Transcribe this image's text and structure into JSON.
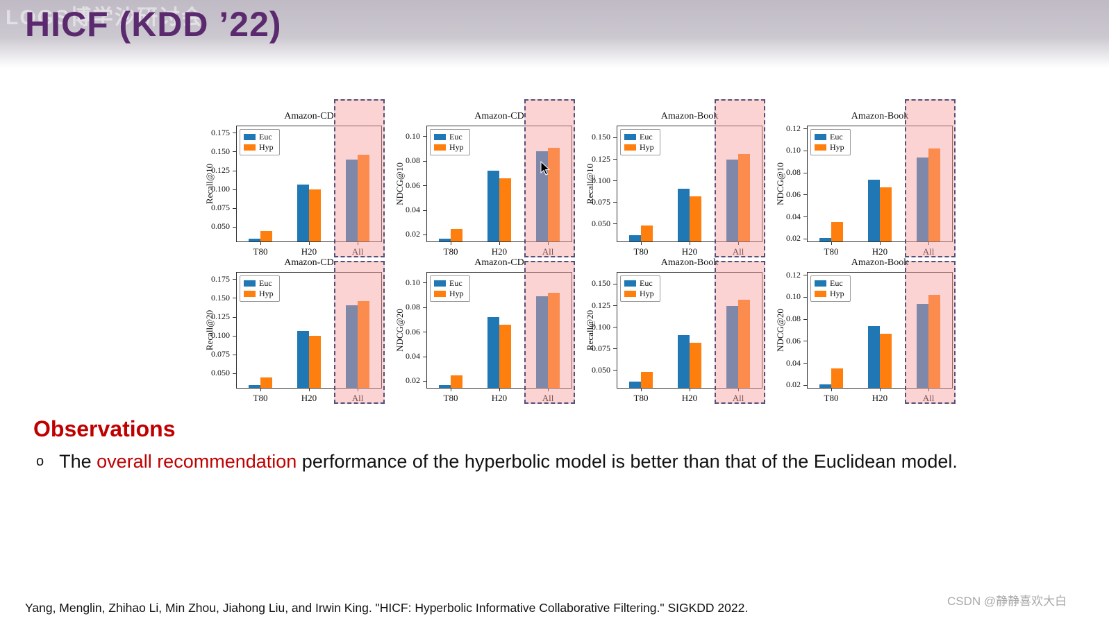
{
  "slide": {
    "title": "HICF (KDD ’22)",
    "watermark_top": "LOGS博学沙研讨会",
    "observations_heading": "Observations",
    "bullet": {
      "marker": "o",
      "prefix": "The ",
      "highlight": "overall recommendation",
      "suffix": " performance of the hyperbolic model is better than that of the Euclidean model."
    },
    "citation": "Yang, Menglin, Zhihao Li, Min Zhou, Jiahong Liu, and Irwin King. \"HICF: Hyperbolic Informative Collaborative Filtering.\"  SIGKDD 2022.",
    "watermark_bottom": "CSDN @静静喜欢大白"
  },
  "colors": {
    "title_purple": "#5b2a6e",
    "accent_red": "#c00000",
    "euc": "#1f77b4",
    "hyp": "#ff7f0e",
    "highlight_fill": "rgba(247,158,158,0.45)",
    "highlight_border": "#50507a"
  },
  "chart_data": [
    {
      "type": "bar",
      "title": "Amazon-CD",
      "ylabel": "Recall@10",
      "categories": [
        "T80",
        "H20",
        "All"
      ],
      "series": [
        {
          "name": "Euc",
          "values": [
            0.035,
            0.107,
            0.14
          ]
        },
        {
          "name": "Hyp",
          "values": [
            0.045,
            0.1,
            0.146
          ]
        }
      ],
      "ylim": [
        0.03,
        0.185
      ],
      "yticks": [
        0.05,
        0.075,
        0.1,
        0.125,
        0.15,
        0.175
      ],
      "ytick_labels": [
        "0.050",
        "0.075",
        "0.100",
        "0.125",
        "0.150",
        "0.175"
      ],
      "legend_position": "upper left",
      "highlight_category": "All"
    },
    {
      "type": "bar",
      "title": "Amazon-CD",
      "ylabel": "NDCG@10",
      "categories": [
        "T80",
        "H20",
        "All"
      ],
      "series": [
        {
          "name": "Euc",
          "values": [
            0.017,
            0.072,
            0.088
          ]
        },
        {
          "name": "Hyp",
          "values": [
            0.025,
            0.066,
            0.091
          ]
        }
      ],
      "ylim": [
        0.014,
        0.109
      ],
      "yticks": [
        0.02,
        0.04,
        0.06,
        0.08,
        0.1
      ],
      "ytick_labels": [
        "0.02",
        "0.04",
        "0.06",
        "0.08",
        "0.10"
      ],
      "legend_position": "upper left",
      "highlight_category": "All"
    },
    {
      "type": "bar",
      "title": "Amazon-Book",
      "ylabel": "Recall@10",
      "categories": [
        "T80",
        "H20",
        "All"
      ],
      "series": [
        {
          "name": "Euc",
          "values": [
            0.037,
            0.091,
            0.125
          ]
        },
        {
          "name": "Hyp",
          "values": [
            0.048,
            0.082,
            0.131
          ]
        }
      ],
      "ylim": [
        0.029,
        0.164
      ],
      "yticks": [
        0.05,
        0.075,
        0.1,
        0.125,
        0.15
      ],
      "ytick_labels": [
        "0.050",
        "0.075",
        "0.100",
        "0.125",
        "0.150"
      ],
      "legend_position": "upper left",
      "highlight_category": "All"
    },
    {
      "type": "bar",
      "title": "Amazon-Book",
      "ylabel": "NDCG@10",
      "categories": [
        "T80",
        "H20",
        "All"
      ],
      "series": [
        {
          "name": "Euc",
          "values": [
            0.021,
            0.074,
            0.094
          ]
        },
        {
          "name": "Hyp",
          "values": [
            0.035,
            0.067,
            0.102
          ]
        }
      ],
      "ylim": [
        0.017,
        0.123
      ],
      "yticks": [
        0.02,
        0.04,
        0.06,
        0.08,
        0.1,
        0.12
      ],
      "ytick_labels": [
        "0.02",
        "0.04",
        "0.06",
        "0.08",
        "0.10",
        "0.12"
      ],
      "legend_position": "upper left",
      "highlight_category": "All"
    },
    {
      "type": "bar",
      "title": "Amazon-CD",
      "ylabel": "Recall@20",
      "categories": [
        "T80",
        "H20",
        "All"
      ],
      "series": [
        {
          "name": "Euc",
          "values": [
            0.035,
            0.107,
            0.141
          ]
        },
        {
          "name": "Hyp",
          "values": [
            0.045,
            0.1,
            0.146
          ]
        }
      ],
      "ylim": [
        0.03,
        0.185
      ],
      "yticks": [
        0.05,
        0.075,
        0.1,
        0.125,
        0.15,
        0.175
      ],
      "ytick_labels": [
        "0.050",
        "0.075",
        "0.100",
        "0.125",
        "0.150",
        "0.175"
      ],
      "legend_position": "upper left",
      "highlight_category": "All"
    },
    {
      "type": "bar",
      "title": "Amazon-CD",
      "ylabel": "NDCG@20",
      "categories": [
        "T80",
        "H20",
        "All"
      ],
      "series": [
        {
          "name": "Euc",
          "values": [
            0.017,
            0.072,
            0.089
          ]
        },
        {
          "name": "Hyp",
          "values": [
            0.025,
            0.066,
            0.092
          ]
        }
      ],
      "ylim": [
        0.014,
        0.109
      ],
      "yticks": [
        0.02,
        0.04,
        0.06,
        0.08,
        0.1
      ],
      "ytick_labels": [
        "0.02",
        "0.04",
        "0.06",
        "0.08",
        "0.10"
      ],
      "legend_position": "upper left",
      "highlight_category": "All"
    },
    {
      "type": "bar",
      "title": "Amazon-Book",
      "ylabel": "Recall@20",
      "categories": [
        "T80",
        "H20",
        "All"
      ],
      "series": [
        {
          "name": "Euc",
          "values": [
            0.037,
            0.091,
            0.125
          ]
        },
        {
          "name": "Hyp",
          "values": [
            0.048,
            0.082,
            0.132
          ]
        }
      ],
      "ylim": [
        0.029,
        0.164
      ],
      "yticks": [
        0.05,
        0.075,
        0.1,
        0.125,
        0.15
      ],
      "ytick_labels": [
        "0.050",
        "0.075",
        "0.100",
        "0.125",
        "0.150"
      ],
      "legend_position": "upper left",
      "highlight_category": "All"
    },
    {
      "type": "bar",
      "title": "Amazon-Book",
      "ylabel": "NDCG@20",
      "categories": [
        "T80",
        "H20",
        "All"
      ],
      "series": [
        {
          "name": "Euc",
          "values": [
            0.021,
            0.074,
            0.094
          ]
        },
        {
          "name": "Hyp",
          "values": [
            0.035,
            0.067,
            0.102
          ]
        }
      ],
      "ylim": [
        0.017,
        0.123
      ],
      "yticks": [
        0.02,
        0.04,
        0.06,
        0.08,
        0.1,
        0.12
      ],
      "ytick_labels": [
        "0.02",
        "0.04",
        "0.06",
        "0.08",
        "0.10",
        "0.12"
      ],
      "legend_position": "upper left",
      "highlight_category": "All"
    }
  ]
}
